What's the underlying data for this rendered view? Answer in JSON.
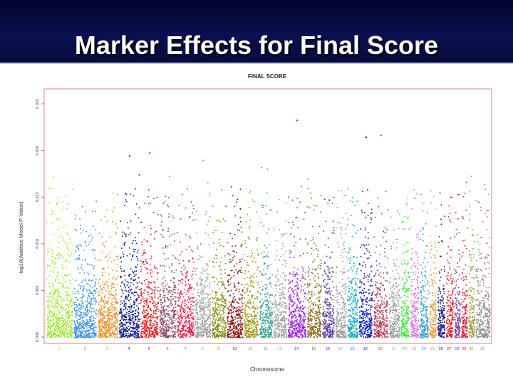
{
  "slide": {
    "title": "Marker Effects for Final Score"
  },
  "chart_data": {
    "type": "scatter",
    "title": "FINAL SCORE",
    "xlabel": "Chromosome",
    "ylabel": "-log10(Additive Model P-Value)",
    "ylim": [
      0,
      0.025
    ],
    "yticks": [
      "0.000",
      "0.005",
      "0.010",
      "0.015",
      "0.020",
      "0.025"
    ],
    "grid": false,
    "legend": "none",
    "categories": [
      "1",
      "2",
      "3",
      "4",
      "5",
      "6",
      "7",
      "8",
      "9",
      "10",
      "11",
      "12",
      "13",
      "14",
      "15",
      "16",
      "17",
      "18",
      "19",
      "20",
      "21",
      "22",
      "23",
      "24",
      "25",
      "26",
      "27",
      "28",
      "29",
      "30",
      "31"
    ],
    "chromosome_colors": [
      "#9ae62b",
      "#3a8ee6",
      "#f08a1a",
      "#0a1a8a",
      "#f01818",
      "#8a4a6a",
      "#e8204a",
      "#9a9a9a",
      "#8a8a10",
      "#8a1010",
      "#9a9a1a",
      "#3aa08a",
      "#a0a0a0",
      "#9a20e0",
      "#8a6a1a",
      "#5a3aa0",
      "#9a9a9a",
      "#0aaac8",
      "#0a1ac0",
      "#b83a5a",
      "#9a9a9a",
      "#3aea3a",
      "#e070e0",
      "#2a9ad8",
      "#f09a3a",
      "#1a1a8a",
      "#e81a1a",
      "#7a3a9a",
      "#e01a3a",
      "#9a9a2a",
      "#8a8a8a"
    ],
    "highest_points": [
      {
        "chromosome": "4",
        "y": 0.0195
      },
      {
        "chromosome": "5",
        "y": 0.0198
      },
      {
        "chromosome": "8",
        "y": 0.019
      },
      {
        "chromosome": "14",
        "y": 0.0233
      },
      {
        "chromosome": "19",
        "y": 0.0215
      },
      {
        "chromosome": "20",
        "y": 0.0217
      }
    ]
  }
}
